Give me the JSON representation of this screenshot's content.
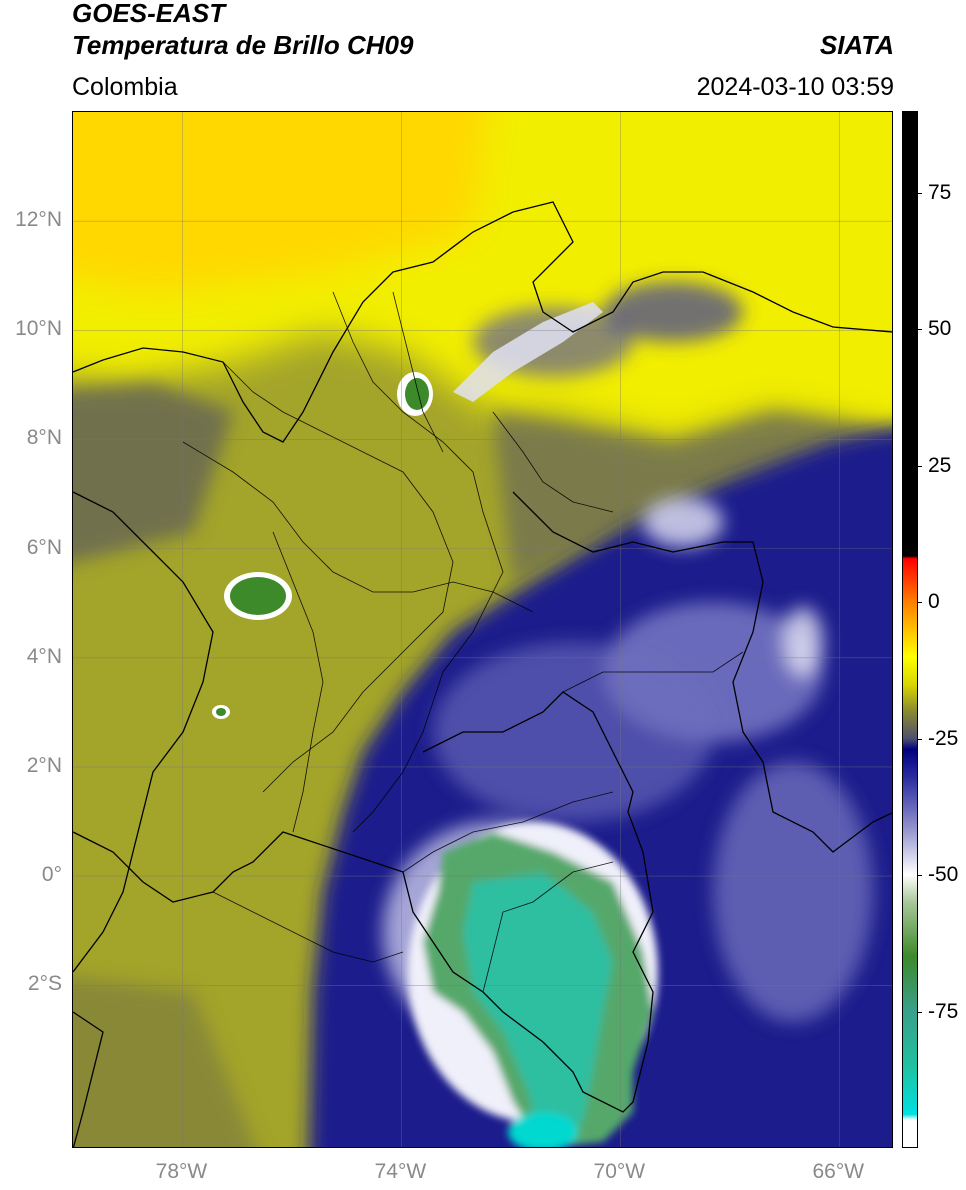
{
  "header": {
    "satellite": "GOES-EAST",
    "product": "Temperatura de Brillo CH09",
    "region": "Colombia",
    "agency": "SIATA",
    "datetime": "2024-03-10 03:59"
  },
  "map": {
    "extent": {
      "lon_min": -80,
      "lon_max": -65,
      "lat_min": -5,
      "lat_max": 14
    },
    "x_ticks": [
      {
        "label": "78°W",
        "lon": -78
      },
      {
        "label": "74°W",
        "lon": -74
      },
      {
        "label": "70°W",
        "lon": -70
      },
      {
        "label": "66°W",
        "lon": -66
      }
    ],
    "y_ticks": [
      {
        "label": "12°N",
        "lat": 12
      },
      {
        "label": "10°N",
        "lat": 10
      },
      {
        "label": "8°N",
        "lat": 8
      },
      {
        "label": "6°N",
        "lat": 6
      },
      {
        "label": "4°N",
        "lat": 4
      },
      {
        "label": "2°N",
        "lat": 2
      },
      {
        "label": "0°",
        "lat": 0
      },
      {
        "label": "2°S",
        "lat": -2
      }
    ],
    "gridlines": true
  },
  "colorbar": {
    "unit_range": [
      -100,
      90
    ],
    "ticks": [
      {
        "label": "75",
        "value": 75
      },
      {
        "label": "50",
        "value": 50
      },
      {
        "label": "25",
        "value": 25
      },
      {
        "label": "0",
        "value": 0
      },
      {
        "label": "-25",
        "value": -25
      },
      {
        "label": "-50",
        "value": -50
      },
      {
        "label": "-75",
        "value": -75
      }
    ],
    "stops": [
      {
        "value": -100,
        "color": "#ffffff"
      },
      {
        "value": -95,
        "color": "#ffffff"
      },
      {
        "value": -94,
        "color": "#00e0e0"
      },
      {
        "value": -85,
        "color": "#20c0a0"
      },
      {
        "value": -75,
        "color": "#3aa08a"
      },
      {
        "value": -65,
        "color": "#3d8a2a"
      },
      {
        "value": -55,
        "color": "#a8c89a"
      },
      {
        "value": -50,
        "color": "#ffffff"
      },
      {
        "value": -42,
        "color": "#9898d0"
      },
      {
        "value": -32,
        "color": "#2a2aa0"
      },
      {
        "value": -27,
        "color": "#000080"
      },
      {
        "value": -25,
        "color": "#505070"
      },
      {
        "value": -20,
        "color": "#8a8a30"
      },
      {
        "value": -15,
        "color": "#d8d800"
      },
      {
        "value": -10,
        "color": "#ffff00"
      },
      {
        "value": -5,
        "color": "#ffc000"
      },
      {
        "value": 0,
        "color": "#ff8000"
      },
      {
        "value": 8,
        "color": "#ff0000"
      },
      {
        "value": 8.5,
        "color": "#000000"
      },
      {
        "value": 90,
        "color": "#000000"
      }
    ]
  }
}
